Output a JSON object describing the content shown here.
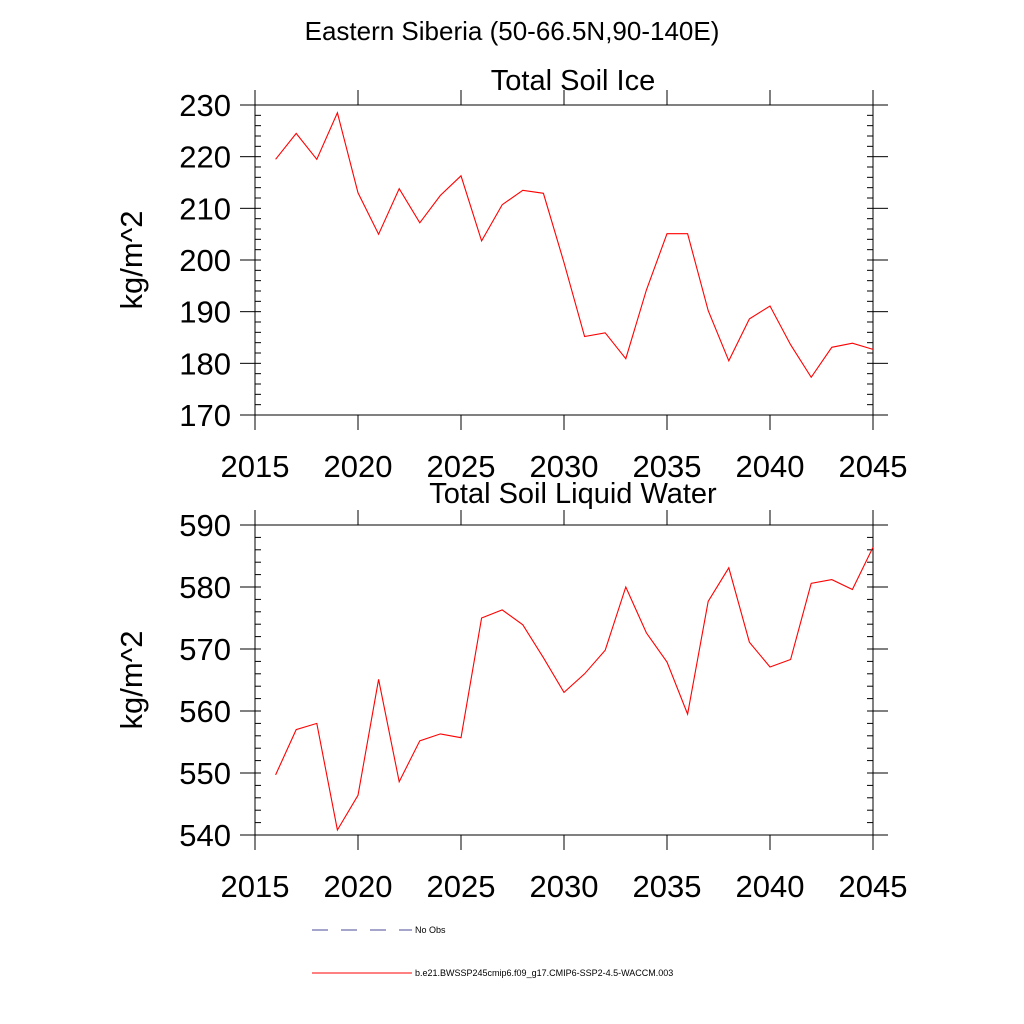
{
  "figure": {
    "suptitle": "Eastern Siberia (50-66.5N,90-140E)"
  },
  "chart_data": [
    {
      "type": "line",
      "title": "Total Soil Ice",
      "xlabel": "",
      "ylabel": "kg/m^2",
      "xlim": [
        2015,
        2045
      ],
      "ylim": [
        170,
        230
      ],
      "xticks": [
        2015,
        2020,
        2025,
        2030,
        2035,
        2040,
        2045
      ],
      "yticks": [
        170,
        180,
        190,
        200,
        210,
        220,
        230
      ],
      "grid": false,
      "x": [
        2016,
        2017,
        2018,
        2019,
        2020,
        2021,
        2022,
        2023,
        2024,
        2025,
        2026,
        2027,
        2028,
        2029,
        2030,
        2031,
        2032,
        2033,
        2034,
        2035,
        2036,
        2037,
        2038,
        2039,
        2040,
        2041,
        2042,
        2043,
        2044,
        2045
      ],
      "series": [
        {
          "name": "b.e21.BWSSP245cmip6.f09_g17.CMIP6-SSP2-4.5-WACCM.003",
          "color": "#ff0000",
          "values": [
            219.5,
            224.5,
            219.5,
            228.5,
            213,
            205,
            213.8,
            207.2,
            212.5,
            216.3,
            203.7,
            210.7,
            213.5,
            212.9,
            199.5,
            185.2,
            185.9,
            180.9,
            194.2,
            205.1,
            205.1,
            190.2,
            180.5,
            188.6,
            191.1,
            183.6,
            177.3,
            183.1,
            183.9,
            182.7
          ]
        }
      ]
    },
    {
      "type": "line",
      "title": "Total Soil Liquid Water",
      "xlabel": "",
      "ylabel": "kg/m^2",
      "xlim": [
        2015,
        2045
      ],
      "ylim": [
        540,
        590
      ],
      "xticks": [
        2015,
        2020,
        2025,
        2030,
        2035,
        2040,
        2045
      ],
      "yticks": [
        540,
        550,
        560,
        570,
        580,
        590
      ],
      "grid": false,
      "x": [
        2016,
        2017,
        2018,
        2019,
        2020,
        2021,
        2022,
        2023,
        2024,
        2025,
        2026,
        2027,
        2028,
        2029,
        2030,
        2031,
        2032,
        2033,
        2034,
        2035,
        2036,
        2037,
        2038,
        2039,
        2040,
        2041,
        2042,
        2043,
        2044,
        2045
      ],
      "series": [
        {
          "name": "b.e21.BWSSP245cmip6.f09_g17.CMIP6-SSP2-4.5-WACCM.003",
          "color": "#ff0000",
          "values": [
            549.7,
            557,
            558,
            540.8,
            546.4,
            565.1,
            548.6,
            555.2,
            556.3,
            555.7,
            575,
            576.3,
            573.9,
            568.6,
            563,
            566,
            569.8,
            580,
            572.6,
            567.9,
            559.5,
            577.7,
            583.1,
            571.1,
            567.1,
            568.3,
            580.6,
            581.2,
            579.6,
            586.4
          ]
        }
      ]
    }
  ],
  "legend": {
    "position": "bottom",
    "entries": [
      {
        "label": "No Obs",
        "color": "#4b4b9a",
        "style": "dashed"
      },
      {
        "label": "b.e21.BWSSP245cmip6.f09_g17.CMIP6-SSP2-4.5-WACCM.003",
        "color": "#ff0000",
        "style": "solid"
      }
    ]
  }
}
